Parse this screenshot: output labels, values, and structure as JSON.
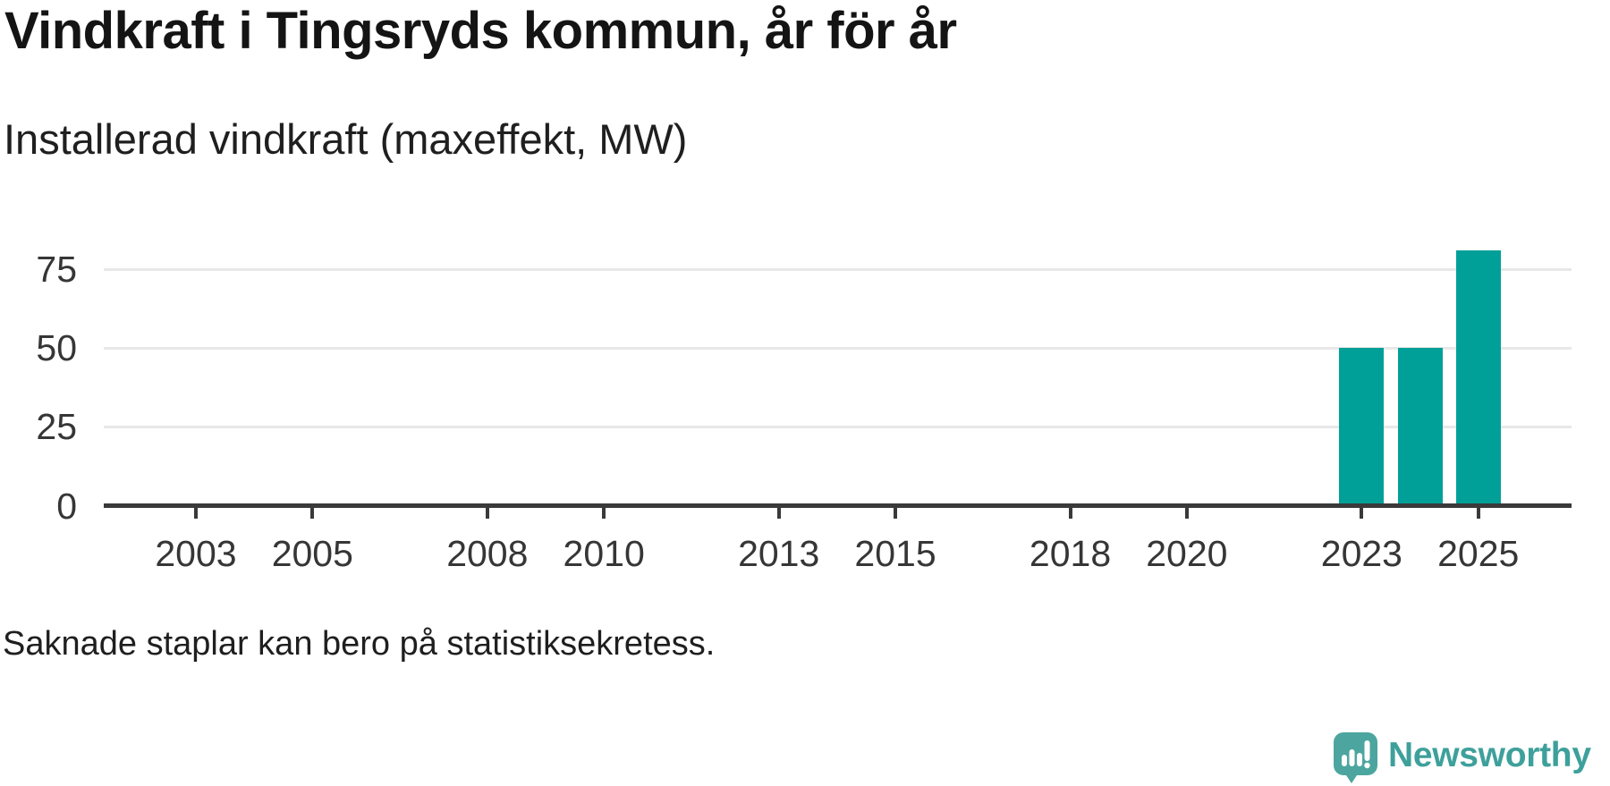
{
  "header": {
    "title": "Vindkraft i Tingsryds kommun, år för år",
    "subtitle": "Installerad vindkraft (maxeffekt, MW)"
  },
  "footer": {
    "note": "Saknade staplar kan bero på statistiksekretess.",
    "brand": "Newsworthy"
  },
  "colors": {
    "bar": "#00a099",
    "gridline": "#e8e8e8",
    "axis": "#3a3a3a",
    "tick_label": "#363636",
    "title_text": "#141414",
    "brand_teal": "#4ca69f",
    "brand_word_teal": "#3ea09b"
  },
  "chart_data": {
    "type": "bar",
    "title": "Vindkraft i Tingsryds kommun, år för år",
    "subtitle": "Installerad vindkraft (maxeffekt, MW)",
    "unit": "MW",
    "x": [
      2023,
      2024,
      2025
    ],
    "values": [
      50,
      50,
      81
    ],
    "x_domain": [
      2001.42,
      2026.6
    ],
    "x_tick_years": [
      2003,
      2005,
      2008,
      2010,
      2013,
      2015,
      2018,
      2020,
      2023,
      2025
    ],
    "y_ticks": [
      0,
      25,
      50,
      75
    ],
    "y_gridlines": [
      25,
      50,
      75
    ],
    "ylim": [
      0,
      95
    ],
    "grid": "horizontal",
    "legend": "none",
    "note": "Saknade staplar kan bero på statistiksekretess."
  }
}
